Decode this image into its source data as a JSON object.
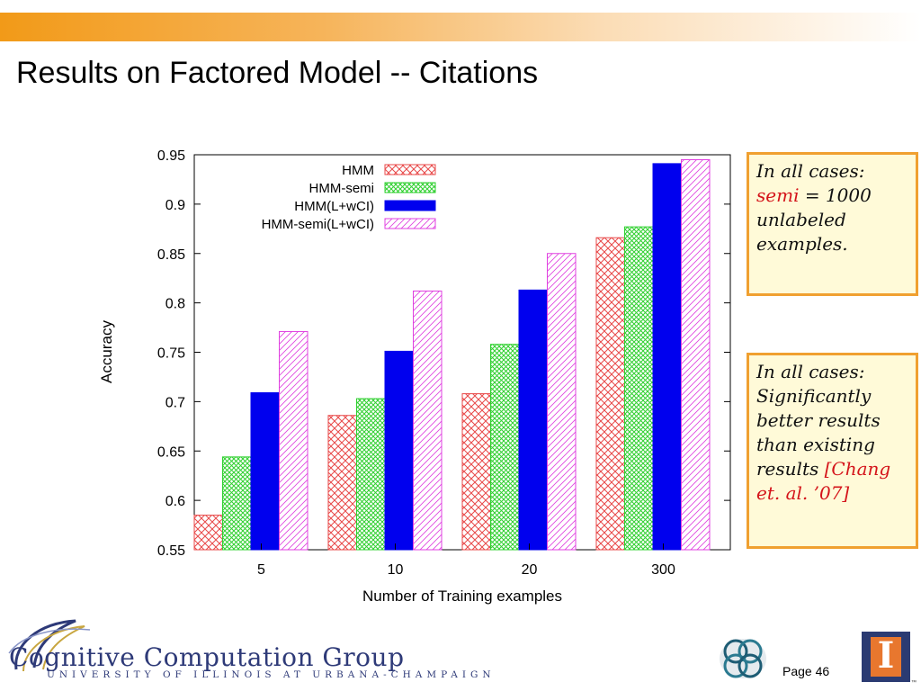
{
  "slide": {
    "title": "Results on Factored Model -- Citations",
    "page_label": "Page 46"
  },
  "notes": {
    "note1": {
      "line1": "In all cases:",
      "semi_word": "semi",
      "line2_rest": " = 1000",
      "line3": "unlabeled",
      "line4": "examples."
    },
    "note2": {
      "line1": "In all cases:",
      "line2": "Significantly",
      "line3": "better results",
      "line4": "than existing",
      "line5": "results ",
      "citation_part1": "[Chang",
      "citation_part2": "et. al. ’07]"
    }
  },
  "footer": {
    "group_name": "Cognitive Computation Group",
    "university": "UNIVERSITY OF ILLINOIS AT URBANA-CHAMPAIGN",
    "illinois_mark": "I",
    "trademark": "™"
  },
  "colors": {
    "hmm": "#e84848",
    "hmm_semi": "#30d030",
    "hmm_lwcl": "#0000ee",
    "hmm_semi_lwcl": "#e040e0",
    "note_border": "#f0a030",
    "note_bg": "#fffad8",
    "accent_red": "#d4141a"
  },
  "chart_data": {
    "type": "bar",
    "categories": [
      "5",
      "10",
      "20",
      "300"
    ],
    "series": [
      {
        "name": "HMM",
        "values": [
          0.585,
          0.686,
          0.708,
          0.866
        ],
        "pattern": "crosshatch"
      },
      {
        "name": "HMM-semi",
        "values": [
          0.644,
          0.703,
          0.758,
          0.877
        ],
        "pattern": "dense-crosshatch"
      },
      {
        "name": "HMM(L+wCI)",
        "values": [
          0.709,
          0.751,
          0.813,
          0.941
        ],
        "pattern": "solid"
      },
      {
        "name": "HMM-semi(L+wCI)",
        "values": [
          0.771,
          0.812,
          0.85,
          0.945
        ],
        "pattern": "diagonal"
      }
    ],
    "xlabel": "Number of Training examples",
    "ylabel": "Accuracy",
    "ylim": [
      0.55,
      0.95
    ],
    "yticks": [
      "0.55",
      "0.6",
      "0.65",
      "0.7",
      "0.75",
      "0.8",
      "0.85",
      "0.9",
      "0.95"
    ],
    "legend_position": "top-left",
    "grid": false
  }
}
